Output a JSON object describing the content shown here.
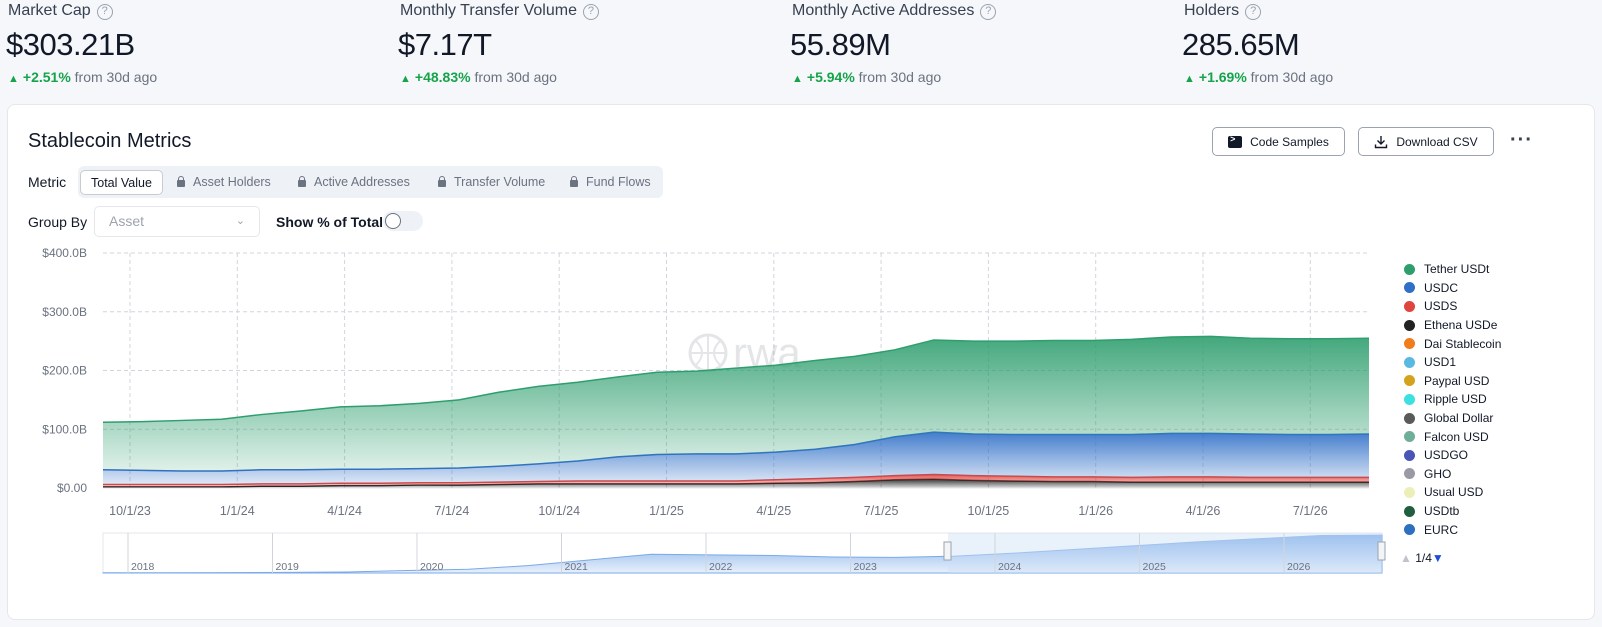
{
  "kpis": [
    {
      "label": "Market Cap",
      "value": "$303.21B",
      "change": "+2.51%",
      "suffix": "from 30d ago"
    },
    {
      "label": "Monthly Transfer Volume",
      "value": "$7.17T",
      "change": "+48.83%",
      "suffix": "from 30d ago"
    },
    {
      "label": "Monthly Active Addresses",
      "value": "55.89M",
      "change": "+5.94%",
      "suffix": "from 30d ago"
    },
    {
      "label": "Holders",
      "value": "285.65M",
      "change": "+1.69%",
      "suffix": "from 30d ago"
    }
  ],
  "card": {
    "title": "Stablecoin Metrics",
    "code_samples_label": "Code Samples",
    "download_csv_label": "Download CSV",
    "metric_label": "Metric",
    "metric_tabs": [
      "Total Value",
      "Asset Holders",
      "Active Addresses",
      "Transfer Volume",
      "Fund Flows"
    ],
    "group_by_label": "Group By",
    "group_by_value": "Asset",
    "show_pct_label": "Show % of Total",
    "show_pct_enabled": false,
    "pager": "1/4"
  },
  "colors": {
    "accent_green": "#16a34a",
    "tether": "#2e9e6e",
    "usdc": "#2f6fc7"
  },
  "chart_data": {
    "type": "area",
    "stacked": true,
    "x_tick_labels": [
      "10/1/23",
      "1/1/24",
      "4/1/24",
      "7/1/24",
      "10/1/24",
      "1/1/25",
      "4/1/25",
      "7/1/25",
      "10/1/25",
      "1/1/26",
      "4/1/26",
      "7/1/26"
    ],
    "y_tick_labels": [
      "$400.0B",
      "$300.0B",
      "$200.0B",
      "$100.0B",
      "$0.00"
    ],
    "ylim": [
      0,
      400
    ],
    "grid": true,
    "legend_position": "right",
    "x": [
      "2023-09",
      "2023-10",
      "2023-12",
      "2024-01",
      "2024-03",
      "2024-04",
      "2024-06",
      "2024-07",
      "2024-09",
      "2024-10",
      "2024-11",
      "2024-12",
      "2025-01",
      "2025-02",
      "2025-03",
      "2025-04",
      "2025-05",
      "2025-06",
      "2025-07",
      "2025-08",
      "2025-09",
      "2025-10",
      "2025-11",
      "2025-12",
      "2026-01",
      "2026-02",
      "2026-03",
      "2026-04",
      "2026-05",
      "2026-06",
      "2026-07",
      "2026-08",
      "2026-09"
    ],
    "series": [
      {
        "name": "Ethena USDe",
        "color": "#222222",
        "values": [
          2,
          2,
          2,
          2,
          3,
          3,
          4,
          4,
          5,
          5,
          6,
          7,
          7,
          7,
          7,
          7,
          7,
          8,
          9,
          11,
          14,
          15,
          13,
          12,
          11,
          11,
          10,
          10,
          10,
          10,
          10,
          10,
          10
        ]
      },
      {
        "name": "USDS",
        "color": "#e0443e",
        "values": [
          4,
          4,
          4,
          4,
          4,
          4,
          4,
          4,
          4,
          4,
          4,
          4,
          5,
          5,
          5,
          5,
          5,
          6,
          7,
          7,
          7,
          8,
          8,
          8,
          8,
          8,
          8,
          9,
          9,
          8,
          8,
          8,
          8
        ]
      },
      {
        "name": "USDC",
        "color": "#2f6fc7",
        "values": [
          25,
          24,
          23,
          23,
          24,
          24,
          24,
          24,
          24,
          25,
          27,
          30,
          34,
          41,
          45,
          46,
          46,
          47,
          50,
          56,
          66,
          72,
          71,
          71,
          72,
          72,
          73,
          74,
          74,
          74,
          73,
          73,
          74
        ]
      },
      {
        "name": "Tether USDt",
        "color": "#2e9e6e",
        "values": [
          81,
          83,
          86,
          88,
          94,
          100,
          106,
          108,
          111,
          116,
          126,
          132,
          134,
          136,
          140,
          141,
          146,
          148,
          151,
          150,
          148,
          157,
          158,
          159,
          160,
          160,
          162,
          164,
          165,
          163,
          163,
          163,
          163
        ]
      }
    ]
  },
  "legend": [
    {
      "name": "Tether USDt",
      "color": "#2e9e6e"
    },
    {
      "name": "USDC",
      "color": "#2f6fc7"
    },
    {
      "name": "USDS",
      "color": "#e0443e"
    },
    {
      "name": "Ethena USDe",
      "color": "#222222"
    },
    {
      "name": "Dai Stablecoin",
      "color": "#f07c1a"
    },
    {
      "name": "USD1",
      "color": "#5ab9e3"
    },
    {
      "name": "Paypal USD",
      "color": "#d4a21c"
    },
    {
      "name": "Ripple USD",
      "color": "#3de0e0"
    },
    {
      "name": "Global Dollar",
      "color": "#5a5a5a"
    },
    {
      "name": "Falcon USD",
      "color": "#6fae9a"
    },
    {
      "name": "USDGO",
      "color": "#4a55b5"
    },
    {
      "name": "GHO",
      "color": "#9a9aa5"
    },
    {
      "name": "Usual USD",
      "color": "#ecf0b8"
    },
    {
      "name": "USDtb",
      "color": "#1f5e3f"
    },
    {
      "name": "EURC",
      "color": "#2e6fc0"
    }
  ],
  "navigator": {
    "year_labels": [
      "2018",
      "2019",
      "2020",
      "2021",
      "2022",
      "2023",
      "2024",
      "2025",
      "2026"
    ],
    "total_values": [
      2,
      2,
      3,
      5,
      8,
      20,
      30,
      60,
      105,
      150,
      145,
      140,
      128,
      125,
      135,
      160,
      190,
      220,
      250,
      275,
      300,
      303
    ]
  }
}
